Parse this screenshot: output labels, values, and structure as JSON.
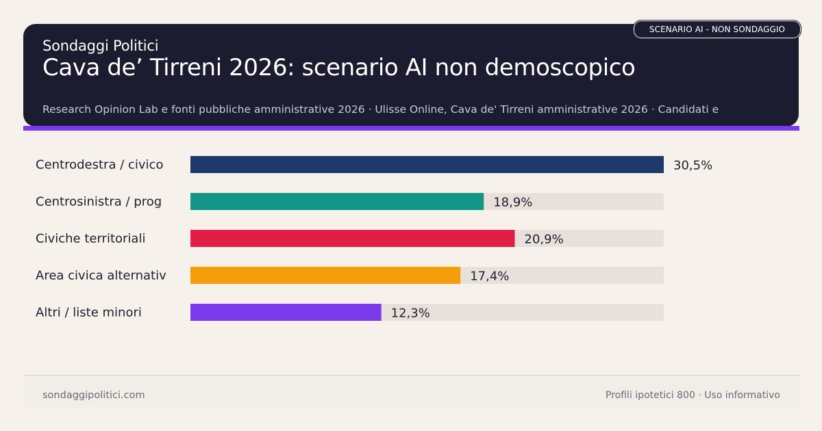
{
  "header": {
    "brand": "Sondaggi Politici",
    "title": "Cava de’ Tirreni 2026: scenario AI non demoscopico",
    "subtitle": "Research Opinion Lab e fonti pubbliche amministrative 2026 · Ulisse Online, Cava de' Tirreni amministrative 2026 · Candidati e",
    "badge": "SCENARIO AI - NON SONDAGGIO"
  },
  "colors": {
    "header_bg": "#1c1c30",
    "accent": "#7c3aed",
    "track": "#e8e1db"
  },
  "chart_data": {
    "type": "bar",
    "orientation": "horizontal",
    "categories": [
      "Centrodestra / civico",
      "Centrosinistra / prog",
      "Civiche territoriali",
      "Area civica alternativ",
      "Altri / liste minori"
    ],
    "values": [
      30.5,
      18.9,
      20.9,
      17.4,
      12.3
    ],
    "value_labels": [
      "30,5%",
      "18,9%",
      "20,9%",
      "17,4%",
      "12,3%"
    ],
    "colors": [
      "#1e3a6b",
      "#14958a",
      "#e11d48",
      "#f59e0b",
      "#7c3aed"
    ],
    "xlim": [
      0,
      30.5
    ],
    "grid": false
  },
  "footer": {
    "site": "sondaggipolitici.com",
    "note": "Profili ipotetici 800 · Uso informativo"
  }
}
